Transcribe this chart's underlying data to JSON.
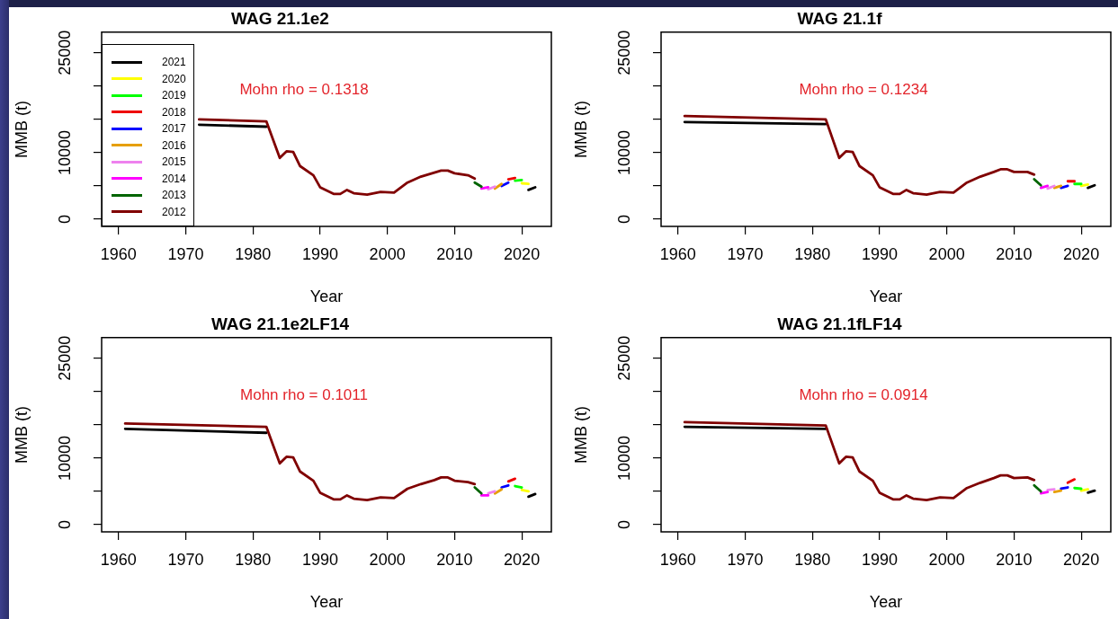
{
  "chart_data": [
    {
      "type": "line",
      "title": "WAG 21.1e2",
      "xlabel": "Year",
      "ylabel": "MMB (t)",
      "annotations": [
        "Mohn rho = 0.1318"
      ],
      "legend": "bottom left",
      "xlim": [
        1957.5,
        2024.4
      ],
      "ylim": [
        -1080,
        28100
      ],
      "xticks": [
        1960,
        1970,
        1980,
        1990,
        2000,
        2010,
        2020
      ],
      "yticks": [
        0,
        {
          "value": 5000,
          "label": null
        },
        10000,
        {
          "value": 15000,
          "label": null
        },
        {
          "value": 20000,
          "label": null
        },
        25000
      ],
      "series": [
        {
          "name": "2021",
          "color": "#000000",
          "x": [
            1972,
            1982,
            1990,
            2021,
            2022
          ],
          "values": [
            14200,
            13900,
            null,
            4400,
            4800
          ]
        },
        {
          "name": "2020",
          "color": "#ffff00",
          "x": [
            2020,
            2021
          ],
          "values": [
            5400,
            5300
          ]
        },
        {
          "name": "2019",
          "color": "#00ff00",
          "x": [
            2019,
            2020
          ],
          "values": [
            5800,
            5900
          ]
        },
        {
          "name": "2018",
          "color": "#ee0000",
          "x": [
            2018,
            2019
          ],
          "values": [
            6000,
            6200
          ]
        },
        {
          "name": "2017",
          "color": "#0000ff",
          "x": [
            2017,
            2018
          ],
          "values": [
            5000,
            5500
          ]
        },
        {
          "name": "2016",
          "color": "#e69f00",
          "x": [
            2016,
            2017
          ],
          "values": [
            4600,
            5300
          ]
        },
        {
          "name": "2015",
          "color": "#ee82ee",
          "x": [
            2015,
            2016
          ],
          "values": [
            4500,
            4900
          ]
        },
        {
          "name": "2014",
          "color": "#ff00ff",
          "x": [
            2014,
            2015
          ],
          "values": [
            4600,
            4800
          ]
        },
        {
          "name": "2013",
          "color": "#006400",
          "x": [
            2013,
            2014
          ],
          "values": [
            5500,
            4900
          ]
        },
        {
          "name": "2012",
          "color": "#800000",
          "x": [
            1972,
            1982,
            1984,
            1985,
            1986,
            1987,
            1989,
            1990,
            1992,
            1993,
            1994,
            1995,
            1997,
            1999,
            2001,
            2003,
            2005,
            2007,
            2008,
            2009,
            2010,
            2012,
            2013
          ],
          "values": [
            15000,
            14700,
            9200,
            10200,
            10100,
            8000,
            6600,
            4800,
            3800,
            3800,
            4400,
            3900,
            3700,
            4100,
            4000,
            5500,
            6400,
            7000,
            7300,
            7300,
            6900,
            6600,
            6100
          ]
        }
      ]
    },
    {
      "type": "line",
      "title": "WAG 21.1f",
      "xlabel": "Year",
      "ylabel": "MMB (t)",
      "annotations": [
        "Mohn rho = 0.1234"
      ],
      "xlim": [
        1957.5,
        2024.4
      ],
      "ylim": [
        -1080,
        28100
      ],
      "xticks": [
        1960,
        1970,
        1980,
        1990,
        2000,
        2010,
        2020
      ],
      "yticks": [
        0,
        {
          "value": 5000,
          "label": null
        },
        10000,
        {
          "value": 15000,
          "label": null
        },
        {
          "value": 20000,
          "label": null
        },
        25000
      ],
      "series": [
        {
          "color": "#000000",
          "x": [
            1961,
            1982,
            1990,
            2021,
            2022
          ],
          "values": [
            14600,
            14300,
            null,
            4700,
            5100
          ]
        },
        {
          "color": "#ffff00",
          "x": [
            2020,
            2021
          ],
          "values": [
            5000,
            5200
          ]
        },
        {
          "color": "#00ff00",
          "x": [
            2019,
            2020
          ],
          "values": [
            5300,
            5300
          ]
        },
        {
          "color": "#ee0000",
          "x": [
            2018,
            2019
          ],
          "values": [
            5700,
            5700
          ]
        },
        {
          "color": "#0000ff",
          "x": [
            2017,
            2018
          ],
          "values": [
            4700,
            5000
          ]
        },
        {
          "color": "#e69f00",
          "x": [
            2016,
            2017
          ],
          "values": [
            4700,
            5000
          ]
        },
        {
          "color": "#ee82ee",
          "x": [
            2015,
            2016
          ],
          "values": [
            4600,
            5000
          ]
        },
        {
          "color": "#ff00ff",
          "x": [
            2014,
            2015
          ],
          "values": [
            4700,
            5000
          ]
        },
        {
          "color": "#006400",
          "x": [
            2013,
            2014
          ],
          "values": [
            6000,
            5100
          ]
        },
        {
          "color": "#800000",
          "x": [
            1961,
            1982,
            1984,
            1985,
            1986,
            1987,
            1989,
            1990,
            1992,
            1993,
            1994,
            1995,
            1997,
            1999,
            2001,
            2003,
            2005,
            2007,
            2008,
            2009,
            2010,
            2012,
            2013
          ],
          "values": [
            15500,
            15000,
            9200,
            10200,
            10100,
            8000,
            6600,
            4800,
            3800,
            3800,
            4400,
            3900,
            3700,
            4100,
            4000,
            5500,
            6400,
            7100,
            7500,
            7500,
            7100,
            7100,
            6700
          ]
        }
      ]
    },
    {
      "type": "line",
      "title": "WAG 21.1e2LF14",
      "xlabel": "Year",
      "ylabel": "MMB (t)",
      "annotations": [
        "Mohn rho = 0.1011"
      ],
      "xlim": [
        1957.5,
        2024.4
      ],
      "ylim": [
        -1080,
        28100
      ],
      "xticks": [
        1960,
        1970,
        1980,
        1990,
        2000,
        2010,
        2020
      ],
      "yticks": [
        0,
        {
          "value": 5000,
          "label": null
        },
        10000,
        {
          "value": 15000,
          "label": null
        },
        {
          "value": 20000,
          "label": null
        },
        25000
      ],
      "series": [
        {
          "color": "#000000",
          "x": [
            1961,
            1982,
            1990,
            2021,
            2022
          ],
          "values": [
            14400,
            13800,
            null,
            4200,
            4600
          ]
        },
        {
          "color": "#ffff00",
          "x": [
            2020,
            2021
          ],
          "values": [
            5200,
            5000
          ]
        },
        {
          "color": "#00ff00",
          "x": [
            2019,
            2020
          ],
          "values": [
            5800,
            5600
          ]
        },
        {
          "color": "#ee0000",
          "x": [
            2018,
            2019
          ],
          "values": [
            6500,
            6900
          ]
        },
        {
          "color": "#0000ff",
          "x": [
            2017,
            2018
          ],
          "values": [
            5600,
            5900
          ]
        },
        {
          "color": "#e69f00",
          "x": [
            2016,
            2017
          ],
          "values": [
            4700,
            5300
          ]
        },
        {
          "color": "#ee82ee",
          "x": [
            2015,
            2016
          ],
          "values": [
            4700,
            5000
          ]
        },
        {
          "color": "#ff00ff",
          "x": [
            2014,
            2015
          ],
          "values": [
            4400,
            4400
          ]
        },
        {
          "color": "#006400",
          "x": [
            2013,
            2014
          ],
          "values": [
            5600,
            4700
          ]
        },
        {
          "color": "#800000",
          "x": [
            1961,
            1982,
            1984,
            1985,
            1986,
            1987,
            1989,
            1990,
            1992,
            1993,
            1994,
            1995,
            1997,
            1999,
            2001,
            2003,
            2005,
            2007,
            2008,
            2009,
            2010,
            2012,
            2013
          ],
          "values": [
            15200,
            14700,
            9200,
            10200,
            10100,
            8000,
            6600,
            4800,
            3800,
            3800,
            4400,
            3900,
            3700,
            4100,
            4000,
            5400,
            6100,
            6700,
            7100,
            7100,
            6600,
            6400,
            6100
          ]
        }
      ]
    },
    {
      "type": "line",
      "title": "WAG 21.1fLF14",
      "xlabel": "Year",
      "ylabel": "MMB (t)",
      "annotations": [
        "Mohn rho = 0.0914"
      ],
      "xlim": [
        1957.5,
        2024.4
      ],
      "ylim": [
        -1080,
        28100
      ],
      "xticks": [
        1960,
        1970,
        1980,
        1990,
        2000,
        2010,
        2020
      ],
      "yticks": [
        0,
        {
          "value": 5000,
          "label": null
        },
        10000,
        {
          "value": 15000,
          "label": null
        },
        {
          "value": 20000,
          "label": null
        },
        25000
      ],
      "series": [
        {
          "color": "#000000",
          "x": [
            1961,
            1982,
            1990,
            2021,
            2022
          ],
          "values": [
            14700,
            14400,
            null,
            4800,
            5100
          ]
        },
        {
          "color": "#ffff00",
          "x": [
            2020,
            2021
          ],
          "values": [
            5100,
            5300
          ]
        },
        {
          "color": "#00ff00",
          "x": [
            2019,
            2020
          ],
          "values": [
            5500,
            5400
          ]
        },
        {
          "color": "#ee0000",
          "x": [
            2018,
            2019
          ],
          "values": [
            6300,
            6800
          ]
        },
        {
          "color": "#0000ff",
          "x": [
            2017,
            2018
          ],
          "values": [
            5400,
            5600
          ]
        },
        {
          "color": "#e69f00",
          "x": [
            2016,
            2017
          ],
          "values": [
            4900,
            5100
          ]
        },
        {
          "color": "#ee82ee",
          "x": [
            2015,
            2016
          ],
          "values": [
            5200,
            5300
          ]
        },
        {
          "color": "#ff00ff",
          "x": [
            2014,
            2015
          ],
          "values": [
            4700,
            4900
          ]
        },
        {
          "color": "#006400",
          "x": [
            2013,
            2014
          ],
          "values": [
            5900,
            5000
          ]
        },
        {
          "color": "#800000",
          "x": [
            1961,
            1982,
            1984,
            1985,
            1986,
            1987,
            1989,
            1990,
            1992,
            1993,
            1994,
            1995,
            1997,
            1999,
            2001,
            2003,
            2005,
            2007,
            2008,
            2009,
            2010,
            2012,
            2013
          ],
          "values": [
            15400,
            14900,
            9200,
            10200,
            10100,
            8000,
            6600,
            4800,
            3800,
            3800,
            4400,
            3900,
            3700,
            4100,
            4000,
            5500,
            6300,
            7000,
            7400,
            7400,
            7000,
            7100,
            6700
          ]
        }
      ]
    }
  ]
}
